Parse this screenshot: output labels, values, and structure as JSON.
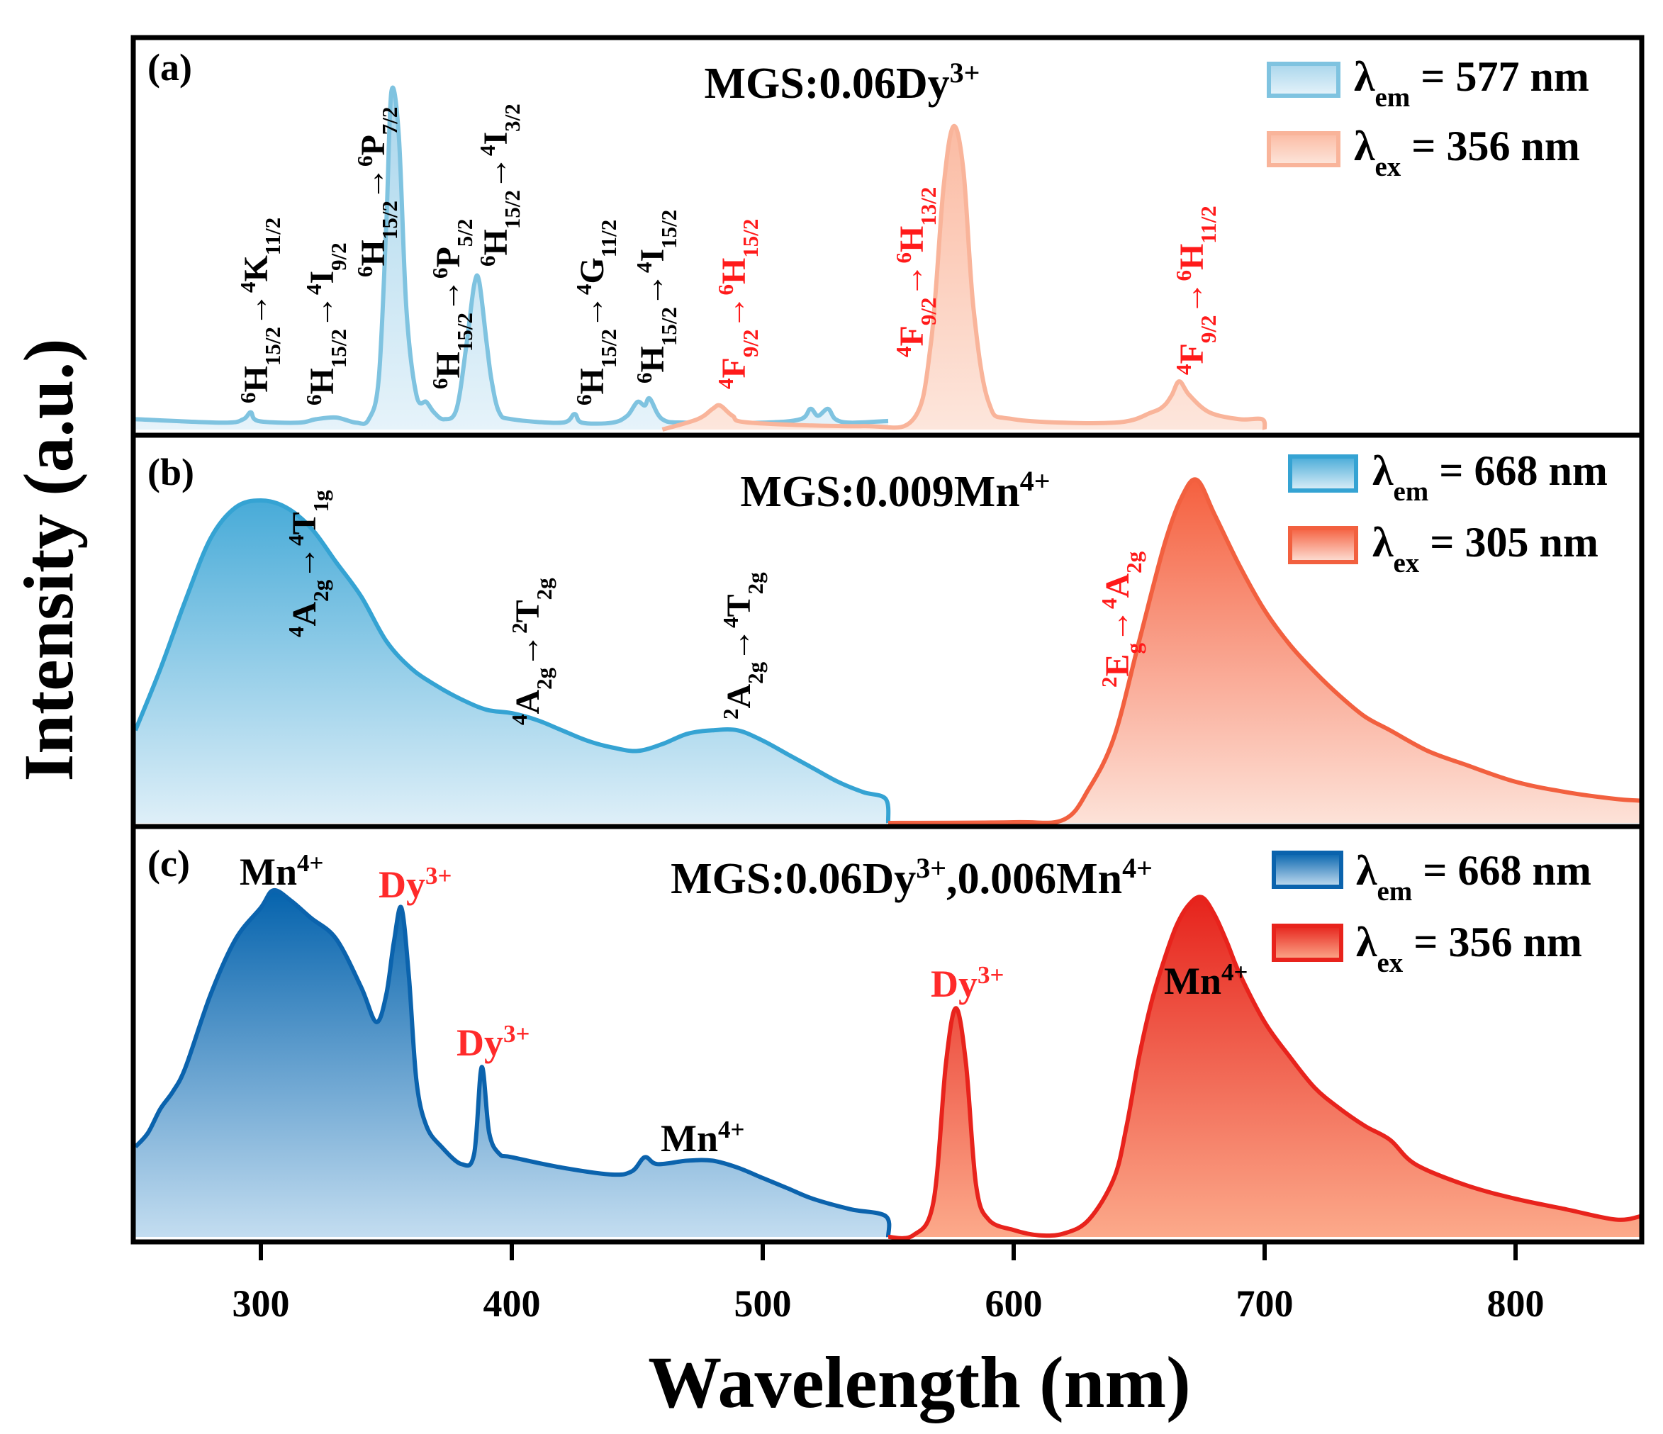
{
  "chart_data": [
    {
      "type": "area",
      "panel_label": "(a)",
      "title": "MGS:0.06Dy^{3+}",
      "xlim": [
        250,
        850
      ],
      "ylim": [
        0,
        1
      ],
      "series": [
        {
          "name": "λ_{em} = 577 nm",
          "kind": "excitation",
          "color": "#7fc3e0",
          "fill_top": "#a9d6ec",
          "fill_bottom": "#e6f3fa",
          "points": [
            [
              250,
              0.03
            ],
            [
              285,
              0.02
            ],
            [
              293,
              0.03
            ],
            [
              296,
              0.05
            ],
            [
              299,
              0.025
            ],
            [
              315,
              0.02
            ],
            [
              322,
              0.03
            ],
            [
              330,
              0.035
            ],
            [
              338,
              0.02
            ],
            [
              343,
              0.03
            ],
            [
              347,
              0.15
            ],
            [
              350,
              0.6
            ],
            [
              352,
              0.98
            ],
            [
              355,
              0.85
            ],
            [
              358,
              0.35
            ],
            [
              362,
              0.1
            ],
            [
              366,
              0.08
            ],
            [
              369,
              0.05
            ],
            [
              373,
              0.03
            ],
            [
              378,
              0.06
            ],
            [
              382,
              0.25
            ],
            [
              385,
              0.42
            ],
            [
              387,
              0.43
            ],
            [
              390,
              0.25
            ],
            [
              392,
              0.14
            ],
            [
              395,
              0.05
            ],
            [
              400,
              0.03
            ],
            [
              420,
              0.02
            ],
            [
              425,
              0.045
            ],
            [
              428,
              0.02
            ],
            [
              440,
              0.02
            ],
            [
              446,
              0.04
            ],
            [
              450,
              0.08
            ],
            [
              453,
              0.07
            ],
            [
              455,
              0.09
            ],
            [
              460,
              0.03
            ],
            [
              470,
              0.02
            ],
            [
              500,
              0.02
            ],
            [
              515,
              0.03
            ],
            [
              519,
              0.06
            ],
            [
              522,
              0.04
            ],
            [
              526,
              0.06
            ],
            [
              529,
              0.03
            ],
            [
              535,
              0.02
            ],
            [
              550,
              0.025
            ]
          ]
        },
        {
          "name": "λ_{ex} = 356 nm",
          "kind": "emission",
          "color": "#f9b49a",
          "fill_top": "#fbbba3",
          "fill_bottom": "#fde6dc",
          "points": [
            [
              460,
              0.0
            ],
            [
              474,
              0.03
            ],
            [
              480,
              0.06
            ],
            [
              483,
              0.07
            ],
            [
              488,
              0.04
            ],
            [
              495,
              0.02
            ],
            [
              540,
              0.01
            ],
            [
              560,
              0.03
            ],
            [
              567,
              0.25
            ],
            [
              572,
              0.7
            ],
            [
              576,
              0.88
            ],
            [
              580,
              0.75
            ],
            [
              584,
              0.35
            ],
            [
              590,
              0.08
            ],
            [
              600,
              0.03
            ],
            [
              640,
              0.02
            ],
            [
              655,
              0.05
            ],
            [
              660,
              0.07
            ],
            [
              663,
              0.1
            ],
            [
              666,
              0.14
            ],
            [
              670,
              0.1
            ],
            [
              678,
              0.05
            ],
            [
              690,
              0.03
            ],
            [
              699,
              0.03
            ],
            [
              700,
              0.0
            ]
          ]
        }
      ],
      "annotations": [
        {
          "text": "^{6}H_{15/2}→^{4}K_{11/2}",
          "color": "#000000"
        },
        {
          "text": "^{6}H_{15/2}→^{4}I_{9/2}",
          "color": "#000000"
        },
        {
          "text": "^{6}H_{15/2}→^{6}P_{7/2}",
          "color": "#000000"
        },
        {
          "text": "^{6}H_{15/2}→^{6}P_{5/2}",
          "color": "#000000"
        },
        {
          "text": "^{6}H_{15/2}→^{4}I_{3/2}",
          "color": "#000000"
        },
        {
          "text": "^{6}H_{15/2}→^{4}G_{11/2}",
          "color": "#000000"
        },
        {
          "text": "^{6}H_{15/2}→^{4}I_{15/2}",
          "color": "#000000"
        },
        {
          "text": "^{4}F_{9/2}→^{6}H_{15/2}",
          "color": "#ff1a1a"
        },
        {
          "text": "^{4}F_{9/2}→^{6}H_{13/2}",
          "color": "#ff1a1a"
        },
        {
          "text": "^{4}F_{9/2}→^{6}H_{11/2}",
          "color": "#ff1a1a"
        }
      ]
    },
    {
      "type": "area",
      "panel_label": "(b)",
      "title": "MGS:0.009Mn^{4+}",
      "xlim": [
        250,
        850
      ],
      "ylim": [
        0,
        1
      ],
      "series": [
        {
          "name": "λ_{em} = 668 nm",
          "kind": "excitation",
          "color": "#35a3d3",
          "fill_top": "#48abd8",
          "fill_bottom": "#deeff8",
          "points": [
            [
              250,
              0.27
            ],
            [
              260,
              0.45
            ],
            [
              270,
              0.65
            ],
            [
              280,
              0.83
            ],
            [
              290,
              0.92
            ],
            [
              300,
              0.94
            ],
            [
              310,
              0.92
            ],
            [
              320,
              0.86
            ],
            [
              330,
              0.76
            ],
            [
              340,
              0.66
            ],
            [
              350,
              0.53
            ],
            [
              360,
              0.45
            ],
            [
              370,
              0.4
            ],
            [
              380,
              0.36
            ],
            [
              390,
              0.33
            ],
            [
              400,
              0.32
            ],
            [
              410,
              0.3
            ],
            [
              420,
              0.27
            ],
            [
              430,
              0.24
            ],
            [
              440,
              0.22
            ],
            [
              450,
              0.21
            ],
            [
              460,
              0.23
            ],
            [
              470,
              0.26
            ],
            [
              480,
              0.27
            ],
            [
              490,
              0.27
            ],
            [
              500,
              0.24
            ],
            [
              510,
              0.2
            ],
            [
              520,
              0.16
            ],
            [
              530,
              0.12
            ],
            [
              540,
              0.09
            ],
            [
              549,
              0.07
            ],
            [
              550,
              0.0
            ]
          ]
        },
        {
          "name": "λ_{ex} = 305 nm",
          "kind": "emission",
          "color": "#f2603f",
          "fill_top": "#f5603f",
          "fill_bottom": "#fde2d8",
          "points": [
            [
              550,
              0.0
            ],
            [
              600,
              0.002
            ],
            [
              620,
              0.01
            ],
            [
              630,
              0.1
            ],
            [
              640,
              0.25
            ],
            [
              650,
              0.53
            ],
            [
              660,
              0.81
            ],
            [
              667,
              0.95
            ],
            [
              673,
              1.0
            ],
            [
              680,
              0.9
            ],
            [
              690,
              0.75
            ],
            [
              700,
              0.62
            ],
            [
              710,
              0.52
            ],
            [
              720,
              0.44
            ],
            [
              730,
              0.37
            ],
            [
              740,
              0.31
            ],
            [
              750,
              0.27
            ],
            [
              765,
              0.21
            ],
            [
              780,
              0.17
            ],
            [
              800,
              0.12
            ],
            [
              820,
              0.09
            ],
            [
              840,
              0.07
            ],
            [
              850,
              0.065
            ]
          ]
        }
      ],
      "annotations": [
        {
          "text": "^{4}A_{2g}→^{4}T_{1g}",
          "color": "#000000"
        },
        {
          "text": "^{4}A_{2g}→^{2}T_{2g}",
          "color": "#000000"
        },
        {
          "text": "^{2}A_{2g}→^{4}T_{2g}",
          "color": "#000000"
        },
        {
          "text": "^{2}E_{g}→^{4}A_{2g}",
          "color": "#ff1a1a"
        }
      ]
    },
    {
      "type": "area",
      "panel_label": "(c)",
      "title": "MGS:0.06Dy^{3+},0.006Mn^{4+}",
      "xlim": [
        250,
        850
      ],
      "ylim": [
        0,
        1
      ],
      "series": [
        {
          "name": "λ_{em} = 668 nm",
          "kind": "excitation",
          "color": "#0b63ad",
          "fill_top": "#0563ad",
          "fill_bottom": "#c3ddf0",
          "points": [
            [
              250,
              0.26
            ],
            [
              255,
              0.3
            ],
            [
              260,
              0.37
            ],
            [
              265,
              0.42
            ],
            [
              270,
              0.49
            ],
            [
              280,
              0.7
            ],
            [
              290,
              0.86
            ],
            [
              300,
              0.95
            ],
            [
              305,
              1.0
            ],
            [
              312,
              0.97
            ],
            [
              320,
              0.92
            ],
            [
              330,
              0.86
            ],
            [
              340,
              0.72
            ],
            [
              346,
              0.62
            ],
            [
              350,
              0.7
            ],
            [
              353,
              0.85
            ],
            [
              356,
              0.95
            ],
            [
              359,
              0.75
            ],
            [
              362,
              0.45
            ],
            [
              366,
              0.32
            ],
            [
              372,
              0.26
            ],
            [
              380,
              0.21
            ],
            [
              385,
              0.24
            ],
            [
              388,
              0.49
            ],
            [
              391,
              0.3
            ],
            [
              395,
              0.24
            ],
            [
              400,
              0.23
            ],
            [
              420,
              0.2
            ],
            [
              440,
              0.18
            ],
            [
              448,
              0.19
            ],
            [
              453,
              0.23
            ],
            [
              458,
              0.21
            ],
            [
              470,
              0.22
            ],
            [
              480,
              0.22
            ],
            [
              490,
              0.2
            ],
            [
              500,
              0.17
            ],
            [
              510,
              0.14
            ],
            [
              520,
              0.11
            ],
            [
              535,
              0.08
            ],
            [
              549,
              0.06
            ],
            [
              550,
              0.0
            ]
          ]
        },
        {
          "name": "λ_{ex} = 356 nm",
          "kind": "emission",
          "color": "#e8231c",
          "fill_top": "#e6231c",
          "fill_bottom": "#fcaa8b",
          "points": [
            [
              550,
              0.0
            ],
            [
              560,
              0.005
            ],
            [
              568,
              0.1
            ],
            [
              573,
              0.5
            ],
            [
              577,
              0.66
            ],
            [
              581,
              0.5
            ],
            [
              585,
              0.15
            ],
            [
              590,
              0.05
            ],
            [
              600,
              0.02
            ],
            [
              610,
              0.005
            ],
            [
              620,
              0.01
            ],
            [
              630,
              0.05
            ],
            [
              640,
              0.17
            ],
            [
              645,
              0.32
            ],
            [
              650,
              0.52
            ],
            [
              655,
              0.68
            ],
            [
              660,
              0.8
            ],
            [
              665,
              0.9
            ],
            [
              670,
              0.96
            ],
            [
              675,
              0.98
            ],
            [
              680,
              0.93
            ],
            [
              685,
              0.85
            ],
            [
              690,
              0.76
            ],
            [
              700,
              0.62
            ],
            [
              710,
              0.52
            ],
            [
              720,
              0.43
            ],
            [
              730,
              0.37
            ],
            [
              740,
              0.32
            ],
            [
              750,
              0.28
            ],
            [
              760,
              0.21
            ],
            [
              780,
              0.15
            ],
            [
              800,
              0.11
            ],
            [
              820,
              0.08
            ],
            [
              840,
              0.05
            ],
            [
              850,
              0.06
            ]
          ]
        }
      ],
      "annotations": [
        {
          "text": "Mn^{4+}",
          "color": "#000000"
        },
        {
          "text": "Dy^{3+}",
          "color": "#ff2a2a"
        },
        {
          "text": "Dy^{3+}",
          "color": "#ff2a2a"
        },
        {
          "text": "Mn^{4+}",
          "color": "#000000"
        },
        {
          "text": "Dy^{3+}",
          "color": "#ff2a2a"
        },
        {
          "text": "Mn^{4+}",
          "color": "#000000"
        }
      ]
    }
  ],
  "axes": {
    "xlabel": "Wavelength (nm)",
    "ylabel": "Intensity (a.u.)",
    "xticks": [
      "300",
      "400",
      "500",
      "600",
      "700",
      "800"
    ],
    "xtick_values": [
      300,
      400,
      500,
      600,
      700,
      800
    ]
  }
}
